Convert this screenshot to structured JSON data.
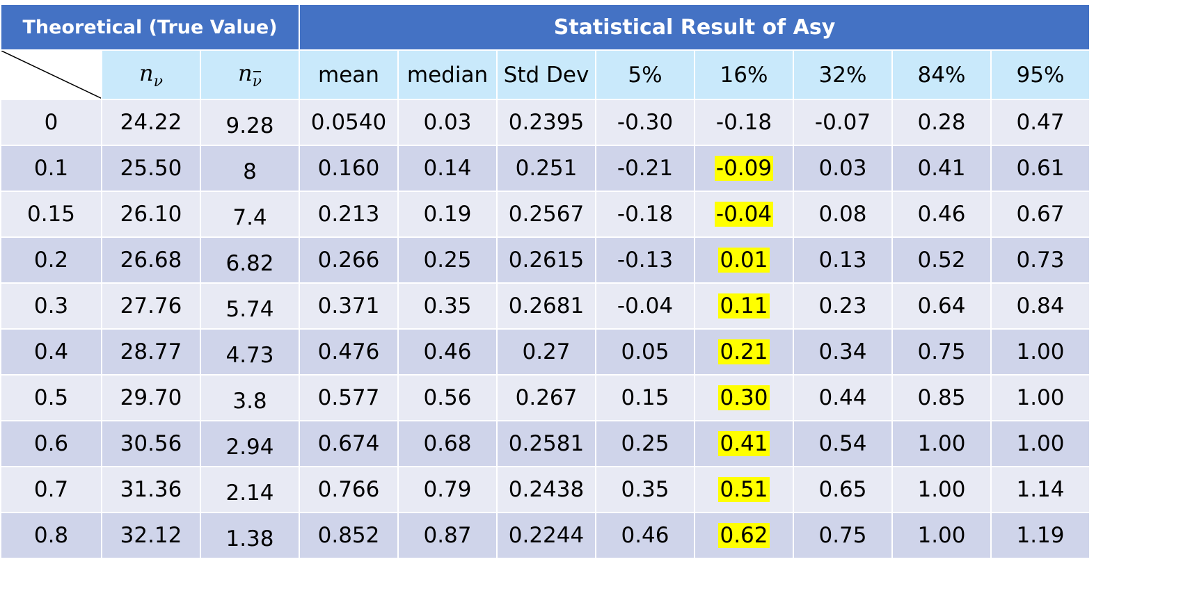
{
  "header": {
    "left_title": "Theoretical (True Value)",
    "right_title": "Statistical Result of Asy"
  },
  "columns": {
    "n_nu": "n",
    "n_nu_sub": "ν",
    "n_nubar": "n",
    "n_nubar_sub": "ν",
    "mean": "mean",
    "median": "median",
    "std": "Std Dev",
    "p5": "5%",
    "p16": "16%",
    "p32": "32%",
    "p84": "84%",
    "p95": "95%"
  },
  "highlight_color": "#ffff00",
  "rows": [
    {
      "asy": "0",
      "n_nu": "24.22",
      "n_nubar": "9.28",
      "mean": "0.0540",
      "median": "0.03",
      "std": "0.2395",
      "p5": "-0.30",
      "p16": "-0.18",
      "p32": "-0.07",
      "p84": "0.28",
      "p95": "0.47",
      "highlight_p16": false
    },
    {
      "asy": "0.1",
      "n_nu": "25.50",
      "n_nubar": "8",
      "mean": "0.160",
      "median": "0.14",
      "std": "0.251",
      "p5": "-0.21",
      "p16": "-0.09",
      "p32": "0.03",
      "p84": "0.41",
      "p95": "0.61",
      "highlight_p16": true
    },
    {
      "asy": "0.15",
      "n_nu": "26.10",
      "n_nubar": "7.4",
      "mean": "0.213",
      "median": "0.19",
      "std": "0.2567",
      "p5": "-0.18",
      "p16": "-0.04",
      "p32": "0.08",
      "p84": "0.46",
      "p95": "0.67",
      "highlight_p16": true
    },
    {
      "asy": "0.2",
      "n_nu": "26.68",
      "n_nubar": "6.82",
      "mean": "0.266",
      "median": "0.25",
      "std": "0.2615",
      "p5": "-0.13",
      "p16": "0.01",
      "p32": "0.13",
      "p84": "0.52",
      "p95": "0.73",
      "highlight_p16": true
    },
    {
      "asy": "0.3",
      "n_nu": "27.76",
      "n_nubar": "5.74",
      "mean": "0.371",
      "median": "0.35",
      "std": "0.2681",
      "p5": "-0.04",
      "p16": "0.11",
      "p32": "0.23",
      "p84": "0.64",
      "p95": "0.84",
      "highlight_p16": true
    },
    {
      "asy": "0.4",
      "n_nu": "28.77",
      "n_nubar": "4.73",
      "mean": "0.476",
      "median": "0.46",
      "std": "0.27",
      "p5": "0.05",
      "p16": "0.21",
      "p32": "0.34",
      "p84": "0.75",
      "p95": "1.00",
      "highlight_p16": true
    },
    {
      "asy": "0.5",
      "n_nu": "29.70",
      "n_nubar": "3.8",
      "mean": "0.577",
      "median": "0.56",
      "std": "0.267",
      "p5": "0.15",
      "p16": "0.30",
      "p32": "0.44",
      "p84": "0.85",
      "p95": "1.00",
      "highlight_p16": true
    },
    {
      "asy": "0.6",
      "n_nu": "30.56",
      "n_nubar": "2.94",
      "mean": "0.674",
      "median": "0.68",
      "std": "0.2581",
      "p5": "0.25",
      "p16": "0.41",
      "p32": "0.54",
      "p84": "1.00",
      "p95": "1.00",
      "highlight_p16": true
    },
    {
      "asy": "0.7",
      "n_nu": "31.36",
      "n_nubar": "2.14",
      "mean": "0.766",
      "median": "0.79",
      "std": "0.2438",
      "p5": "0.35",
      "p16": "0.51",
      "p32": "0.65",
      "p84": "1.00",
      "p95": "1.14",
      "highlight_p16": true
    },
    {
      "asy": "0.8",
      "n_nu": "32.12",
      "n_nubar": "1.38",
      "mean": "0.852",
      "median": "0.87",
      "std": "0.2244",
      "p5": "0.46",
      "p16": "0.62",
      "p32": "0.75",
      "p84": "1.00",
      "p95": "1.19",
      "highlight_p16": true
    }
  ]
}
